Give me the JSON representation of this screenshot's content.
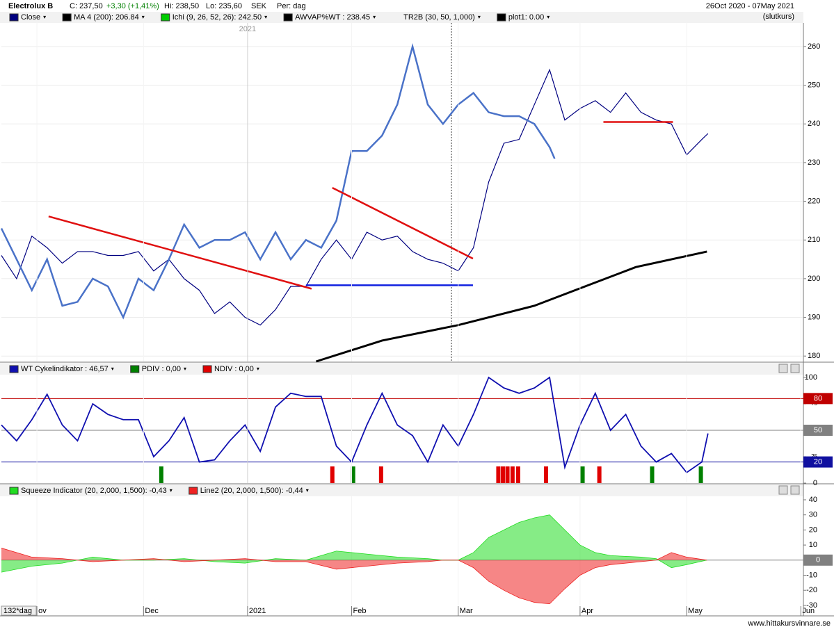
{
  "header": {
    "title": "Electrolux B",
    "close": "C: 237,50",
    "change": "+3,30 (+1,41%)",
    "high": "Hi: 238,50",
    "low": "Lo: 235,60",
    "currency": "SEK",
    "period": "Per: dag",
    "range": "26Oct 2020 - 07May 2021",
    "mode": "(slutkurs)"
  },
  "footer": "www.hittakursvinnare.se",
  "chart_data": [
    {
      "type": "line",
      "year_label": "2021",
      "xlim": [
        0,
        158
      ],
      "ylim": [
        178.6,
        266.1
      ],
      "yticks": [
        180,
        190,
        200,
        210,
        220,
        230,
        240,
        250,
        260
      ],
      "grid": true,
      "series": [
        {
          "name": "Close",
          "color": "#000080",
          "x": [
            0,
            3,
            6,
            9,
            12,
            15,
            18,
            21,
            24,
            27,
            30,
            33,
            36,
            39,
            42,
            45,
            48,
            51,
            54,
            57,
            60,
            63,
            66,
            69,
            72,
            75,
            78,
            81,
            84,
            87,
            90,
            93,
            96,
            99,
            102,
            105,
            108,
            111,
            114,
            117,
            120,
            123,
            126,
            129,
            132,
            135,
            138,
            139.2
          ],
          "values": [
            206,
            200,
            211,
            208,
            204,
            207,
            207,
            206,
            206,
            207,
            202,
            205,
            200,
            197,
            191,
            194,
            190,
            188,
            192,
            198,
            198,
            205,
            210,
            205,
            212,
            210,
            211,
            207,
            205,
            204,
            202,
            208,
            225,
            235,
            236,
            245,
            254,
            241,
            244,
            246,
            243,
            248,
            243,
            241,
            240,
            232,
            236,
            237.5
          ]
        },
        {
          "name": "MA 4 (200): 206.84",
          "color": "#000000",
          "x": [
            62,
            75,
            90,
            105,
            115,
            125,
            139
          ],
          "values": [
            178.6,
            184,
            188,
            193,
            198,
            203,
            207
          ]
        },
        {
          "color": "#4a72c8",
          "x": [
            0,
            3,
            6,
            9,
            12,
            15,
            18,
            21,
            24,
            27,
            30,
            33,
            36,
            39,
            42,
            45,
            48,
            51,
            54,
            57,
            60,
            63,
            66,
            69,
            72,
            75,
            78,
            81,
            84,
            87,
            90,
            93,
            96,
            99,
            102,
            105,
            108,
            109
          ],
          "values": [
            213,
            205,
            197,
            205,
            193,
            194,
            200,
            198,
            190,
            200,
            197,
            205,
            214,
            208,
            210,
            210,
            212,
            205,
            212,
            205,
            210,
            208,
            215,
            233,
            233,
            237,
            245,
            260,
            245,
            240,
            245,
            248,
            243,
            242,
            242,
            240,
            234,
            231
          ]
        }
      ],
      "indicators": [
        {
          "label": "Ichi (9, 26, 52, 26): 242.50",
          "color": "#00cc00"
        },
        {
          "label": "AWVAP%WT : 238.45",
          "color": "#000000"
        },
        {
          "label": "TR2B (30, 50, 1,000)"
        },
        {
          "label": "plot1: 0.00",
          "color": "#000000"
        }
      ],
      "trendlines": [
        {
          "color": "#e01010",
          "x": [
            9.3,
            61.1
          ],
          "values": [
            216.1,
            197.4
          ]
        },
        {
          "color": "#e01010",
          "x": [
            65.2,
            92.9
          ],
          "values": [
            223.5,
            205.2
          ]
        },
        {
          "color": "#1020e0",
          "x": [
            60,
            92.9
          ],
          "values": [
            198.3,
            198.3
          ]
        },
        {
          "color": "#e01010",
          "x": [
            118.6,
            132.3
          ],
          "values": [
            240.5,
            240.5
          ]
        }
      ]
    },
    {
      "type": "line",
      "xlim": [
        0,
        158
      ],
      "ylim": [
        0,
        102.6
      ],
      "yticks": [
        0,
        25,
        50,
        75,
        100
      ],
      "levels": [
        {
          "value": 80,
          "color": "#c00000"
        },
        {
          "value": 50,
          "color": "#808080"
        },
        {
          "value": 20,
          "color": "#1010a0"
        }
      ],
      "series": [
        {
          "name": "WT Cykelindikator : 46,57",
          "color": "#1010b0",
          "x": [
            0,
            3,
            6,
            9,
            12,
            15,
            18,
            21,
            24,
            27,
            30,
            33,
            36,
            39,
            42,
            45,
            48,
            51,
            54,
            57,
            60,
            63,
            66,
            69,
            72,
            75,
            78,
            81,
            84,
            87,
            90,
            93,
            96,
            99,
            102,
            105,
            108,
            111,
            114,
            117,
            120,
            123,
            126,
            129,
            132,
            135,
            138,
            139.2
          ],
          "values": [
            55,
            40,
            60,
            84,
            55,
            40,
            75,
            65,
            60,
            60,
            25,
            40,
            62,
            20,
            22,
            40,
            55,
            30,
            72,
            85,
            82,
            82,
            35,
            20,
            55,
            85,
            55,
            45,
            20,
            55,
            35,
            65,
            100,
            90,
            85,
            90,
            100,
            15,
            55,
            85,
            50,
            65,
            35,
            20,
            28,
            10,
            20,
            47
          ]
        },
        {
          "name": "PDIV : 0,00",
          "color": "#008000",
          "signal_x": [
            31.5,
            69.3,
            114.5,
            128.2,
            137.8
          ]
        },
        {
          "name": "NDIV : 0,00",
          "color": "#e00000",
          "signal_x": [
            65.2,
            74.8,
            97.9,
            98.8,
            99.7,
            100.7,
            101.8,
            107.3,
            117.8
          ]
        }
      ]
    },
    {
      "type": "area",
      "xlim": [
        0,
        158
      ],
      "ylim": [
        -36.5,
        42.3
      ],
      "yticks": [
        -30,
        -20,
        -10,
        0,
        10,
        20,
        30,
        40
      ],
      "levels": [
        {
          "value": 0,
          "color": "#808080"
        }
      ],
      "period_label": "132*dag",
      "xticks": [
        {
          "value": 7,
          "label": "ov"
        },
        {
          "value": 28,
          "label": "Dec"
        },
        {
          "value": 48.5,
          "label": "2021"
        },
        {
          "value": 69,
          "label": "Feb"
        },
        {
          "value": 90,
          "label": "Mar"
        },
        {
          "value": 114,
          "label": "Apr"
        },
        {
          "value": 135,
          "label": "May"
        },
        {
          "value": 157.5,
          "label": "Jun"
        }
      ],
      "series": [
        {
          "name": "Squeeze Indicator (20, 2,000, 1,500): -0,43",
          "color": "#22dd22",
          "x": [
            0,
            6,
            12,
            18,
            24,
            30,
            36,
            42,
            48,
            54,
            60,
            66,
            72,
            78,
            84,
            87,
            90,
            93,
            96,
            99,
            102,
            105,
            108,
            111,
            114,
            117,
            120,
            126,
            129,
            132,
            135,
            139
          ],
          "values": [
            -8,
            -4,
            -2,
            2,
            0,
            0,
            1,
            -1,
            -2,
            1,
            0,
            6,
            4,
            2,
            1,
            0,
            0,
            5,
            15,
            20,
            25,
            28,
            30,
            20,
            10,
            5,
            3,
            2,
            1,
            -5,
            -3,
            0
          ]
        },
        {
          "name": "Line2 (20, 2,000, 1,500): -0,44",
          "color": "#ee2222",
          "x": [
            0,
            6,
            12,
            18,
            24,
            30,
            36,
            42,
            48,
            54,
            60,
            66,
            72,
            78,
            84,
            87,
            90,
            93,
            96,
            99,
            102,
            105,
            108,
            111,
            114,
            117,
            120,
            126,
            129,
            132,
            135,
            139
          ],
          "values": [
            8,
            2,
            1,
            -1,
            0,
            1,
            -1,
            0,
            1,
            -1,
            -1,
            -6,
            -4,
            -2,
            -1,
            0,
            0,
            -5,
            -14,
            -20,
            -25,
            -28,
            -29,
            -19,
            -10,
            -5,
            -3,
            -1,
            0,
            5,
            2,
            0
          ]
        }
      ]
    }
  ]
}
